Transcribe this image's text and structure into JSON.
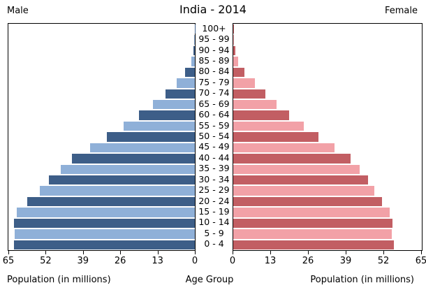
{
  "title": "India - 2014",
  "headers": {
    "left": "Male",
    "right": "Female"
  },
  "axis": {
    "ticks_left": [
      65,
      52,
      39,
      26,
      13,
      0
    ],
    "ticks_right": [
      0,
      13,
      26,
      39,
      52,
      65
    ],
    "max": 65,
    "label_left": "Population (in millions)",
    "label_center": "Age Group",
    "label_right": "Population (in millions)"
  },
  "colors": {
    "male_dark": "#3d5e88",
    "male_light": "#8fb0d8",
    "female_dark": "#c25e63",
    "female_light": "#f2a1a7"
  },
  "chart_data": {
    "type": "bar",
    "subtype": "population-pyramid",
    "title": "India - 2014",
    "unit": "millions of people",
    "orientation": "horizontal, ages listed top to bottom",
    "categories": [
      "100+",
      "95 - 99",
      "90 - 94",
      "85 - 89",
      "80 - 84",
      "75 - 79",
      "70 - 74",
      "65 - 69",
      "60 - 64",
      "55 - 59",
      "50 - 54",
      "45 - 49",
      "40 - 44",
      "35 - 39",
      "30 - 34",
      "25 - 29",
      "20 - 24",
      "15 - 19",
      "10 - 14",
      "5 - 9",
      "0 - 4"
    ],
    "series": [
      {
        "name": "Male",
        "side": "left",
        "values": [
          0.1,
          0.25,
          0.6,
          1.3,
          3.3,
          6.4,
          10.2,
          14.7,
          19.4,
          24.9,
          30.7,
          36.4,
          42.8,
          46.7,
          50.9,
          54.1,
          58.4,
          62.0,
          63.1,
          62.8,
          63.1
        ]
      },
      {
        "name": "Female",
        "side": "right",
        "values": [
          0.1,
          0.3,
          0.7,
          1.6,
          3.8,
          7.4,
          11.0,
          15.0,
          19.3,
          24.3,
          29.4,
          35.0,
          40.4,
          43.6,
          46.5,
          48.7,
          51.2,
          54.0,
          54.9,
          54.7,
          55.3
        ]
      }
    ],
    "xlim": [
      0,
      65
    ],
    "xticks": [
      0,
      13,
      26,
      39,
      52,
      65
    ],
    "xlabel": "Population (in millions)",
    "ylabel": "Age Group",
    "legend": false,
    "grid": false
  }
}
